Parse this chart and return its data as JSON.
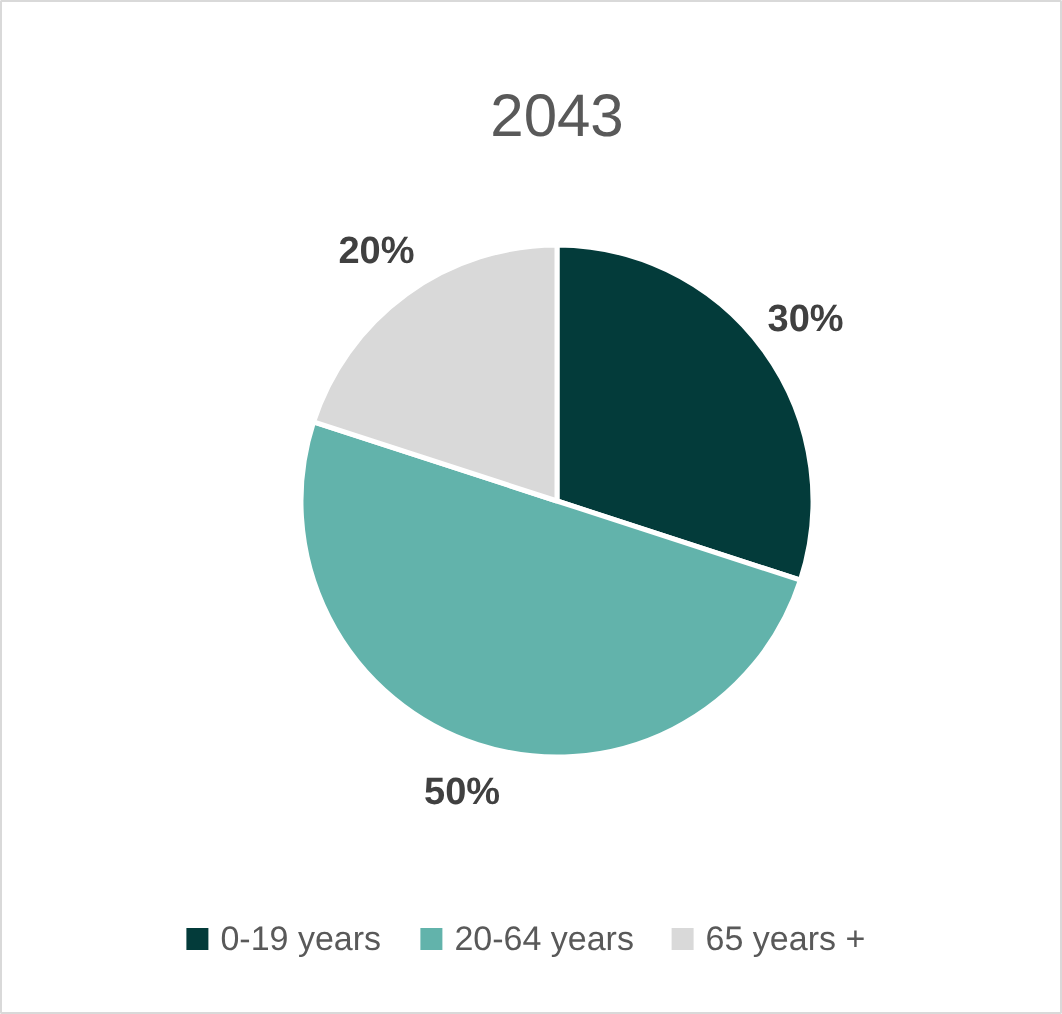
{
  "chart_data": {
    "type": "pie",
    "title": "2043",
    "categories": [
      "0-19 years",
      "20-64 years",
      "65 years +"
    ],
    "values": [
      30,
      50,
      20
    ],
    "colors": [
      "#033b3a",
      "#62b3ab",
      "#d9d9d9"
    ],
    "value_labels": [
      "30%",
      "50%",
      "20%"
    ],
    "legend": "bottom"
  }
}
